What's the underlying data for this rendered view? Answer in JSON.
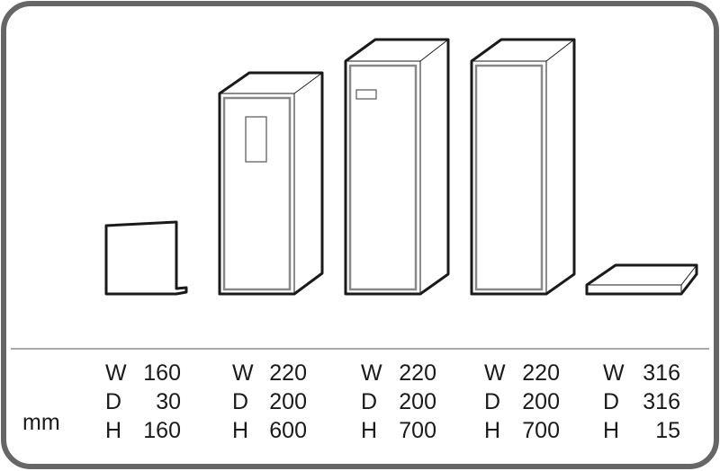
{
  "unit": "mm",
  "items": [
    {
      "name": "panel",
      "W": "160",
      "D": "30",
      "H": "160"
    },
    {
      "name": "cabinet-with-window",
      "W": "220",
      "D": "200",
      "H": "600"
    },
    {
      "name": "cabinet-with-slot",
      "W": "220",
      "D": "200",
      "H": "700"
    },
    {
      "name": "cabinet-plain",
      "W": "220",
      "D": "200",
      "H": "700"
    },
    {
      "name": "base-plate",
      "W": "316",
      "D": "316",
      "H": "15"
    }
  ],
  "labels": {
    "w": "W",
    "d": "D",
    "h": "H"
  },
  "colors": {
    "frame": "#666666",
    "line": "#1a1a1a",
    "divider": "#555555"
  }
}
